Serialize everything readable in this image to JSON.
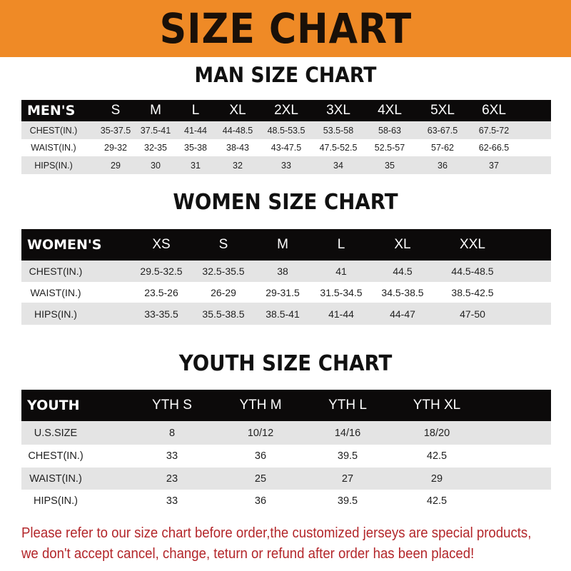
{
  "banner_title": "SIZE CHART",
  "colors": {
    "banner": "#ef8a26",
    "header_row": "#0c0a0a",
    "stripe": "#e4e4e4",
    "note": "#b3262a"
  },
  "men": {
    "title": "MAN SIZE CHART",
    "header": [
      "MEN'S",
      "S",
      "M",
      "L",
      "XL",
      "2XL",
      "3XL",
      "4XL",
      "5XL",
      "6XL"
    ],
    "rows": [
      [
        "CHEST(IN.)",
        "35-37.5",
        "37.5-41",
        "41-44",
        "44-48.5",
        "48.5-53.5",
        "53.5-58",
        "58-63",
        "63-67.5",
        "67.5-72"
      ],
      [
        "WAIST(IN.)",
        "29-32",
        "32-35",
        "35-38",
        "38-43",
        "43-47.5",
        "47.5-52.5",
        "52.5-57",
        "57-62",
        "62-66.5"
      ],
      [
        "HIPS(IN.)",
        "29",
        "30",
        "31",
        "32",
        "33",
        "34",
        "35",
        "36",
        "37"
      ]
    ]
  },
  "women": {
    "title": "WOMEN SIZE CHART",
    "header": [
      "WOMEN'S",
      "XS",
      "S",
      "M",
      "L",
      "XL",
      "XXL"
    ],
    "rows": [
      [
        "CHEST(IN.)",
        "29.5-32.5",
        "32.5-35.5",
        "38",
        "41",
        "44.5",
        "44.5-48.5"
      ],
      [
        "WAIST(IN.)",
        "23.5-26",
        "26-29",
        "29-31.5",
        "31.5-34.5",
        "34.5-38.5",
        "38.5-42.5"
      ],
      [
        "HIPS(IN.)",
        "33-35.5",
        "35.5-38.5",
        "38.5-41",
        "41-44",
        "44-47",
        "47-50"
      ]
    ]
  },
  "youth": {
    "title": "YOUTH SIZE CHART",
    "header": [
      "YOUTH",
      "YTH S",
      "YTH M",
      "YTH L",
      "YTH XL"
    ],
    "rows": [
      [
        "U.S.SIZE",
        "8",
        "10/12",
        "14/16",
        "18/20"
      ],
      [
        "CHEST(IN.)",
        "33",
        "36",
        "39.5",
        "42.5"
      ],
      [
        "WAIST(IN.)",
        "23",
        "25",
        "27",
        "29"
      ],
      [
        "HIPS(IN.)",
        "33",
        "36",
        "39.5",
        "42.5"
      ]
    ]
  },
  "note": {
    "line1": "Please refer to our size chart before order,the customized jerseys are special products,",
    "line2": "we don't accept cancel, change, teturn or refund after order has been placed!"
  }
}
